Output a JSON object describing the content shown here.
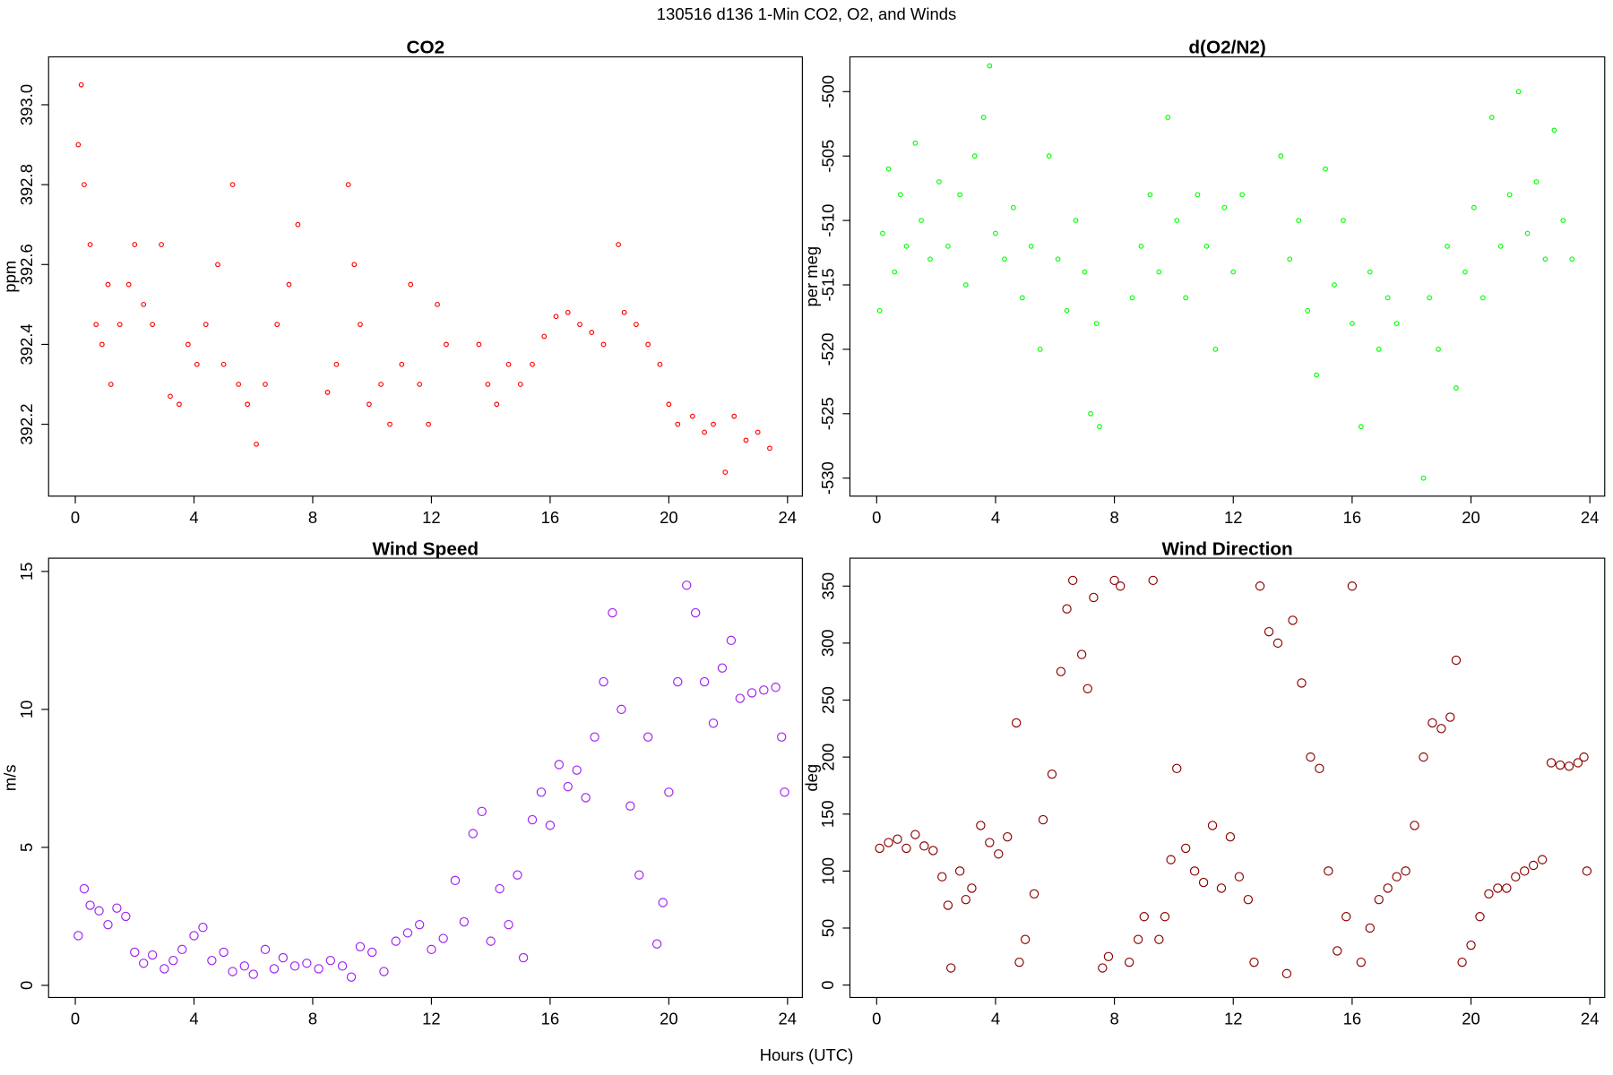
{
  "title": "130516   d136   1-Min CO2, O2, and Winds",
  "xlabel": "Hours (UTC)",
  "chart_data": [
    {
      "type": "scatter",
      "title": "CO2",
      "ylabel": "ppm",
      "color": "#ff0000",
      "xlim": [
        -0.9,
        24.5
      ],
      "xticks": [
        0,
        4,
        8,
        12,
        16,
        20,
        24
      ],
      "ylim": [
        392.02,
        393.12
      ],
      "yticks": [
        392.2,
        392.4,
        392.6,
        392.8,
        {
          "value": 393,
          "label": "393.0"
        }
      ],
      "x": [
        0.1,
        0.2,
        0.3,
        0.5,
        0.7,
        0.9,
        1.1,
        1.2,
        1.5,
        1.8,
        2.0,
        2.3,
        2.6,
        2.9,
        3.2,
        3.5,
        3.8,
        4.1,
        4.4,
        4.8,
        5.0,
        5.3,
        5.5,
        5.8,
        6.1,
        6.4,
        6.8,
        7.2,
        7.5,
        8.5,
        8.8,
        9.2,
        9.4,
        9.6,
        9.9,
        10.3,
        10.6,
        11.0,
        11.3,
        11.6,
        11.9,
        12.2,
        12.5,
        13.6,
        13.9,
        14.2,
        14.6,
        15.0,
        15.4,
        15.8,
        16.2,
        16.6,
        17.0,
        17.4,
        17.8,
        18.3,
        18.5,
        18.9,
        19.3,
        19.7,
        20.0,
        20.3,
        20.8,
        21.2,
        21.5,
        21.9,
        22.2,
        22.6,
        23.0,
        23.4
      ],
      "values": [
        392.9,
        393.05,
        392.8,
        392.65,
        392.45,
        392.4,
        392.55,
        392.3,
        392.45,
        392.55,
        392.65,
        392.5,
        392.45,
        392.65,
        392.27,
        392.25,
        392.4,
        392.35,
        392.45,
        392.6,
        392.35,
        392.8,
        392.3,
        392.25,
        392.15,
        392.3,
        392.45,
        392.55,
        392.7,
        392.28,
        392.35,
        392.8,
        392.6,
        392.45,
        392.25,
        392.3,
        392.2,
        392.35,
        392.55,
        392.3,
        392.2,
        392.5,
        392.4,
        392.4,
        392.3,
        392.25,
        392.35,
        392.3,
        392.35,
        392.42,
        392.47,
        392.48,
        392.45,
        392.43,
        392.4,
        392.65,
        392.48,
        392.45,
        392.4,
        392.35,
        392.25,
        392.2,
        392.22,
        392.18,
        392.2,
        392.08,
        392.22,
        392.16,
        392.18,
        392.14
      ]
    },
    {
      "type": "scatter",
      "title": "d(O2/N2)",
      "ylabel": "per meg",
      "color": "#00ff00",
      "xlim": [
        -0.9,
        24.5
      ],
      "xticks": [
        0,
        4,
        8,
        12,
        16,
        20,
        24
      ],
      "ylim": [
        -531.4,
        -497.3
      ],
      "yticks": [
        -530,
        -525,
        -520,
        -515,
        -510,
        -505,
        -500
      ],
      "x": [
        0.1,
        0.2,
        0.4,
        0.6,
        0.8,
        1.0,
        1.3,
        1.5,
        1.8,
        2.1,
        2.4,
        2.8,
        3.0,
        3.3,
        3.6,
        3.8,
        4.0,
        4.3,
        4.6,
        4.9,
        5.2,
        5.5,
        5.8,
        6.1,
        6.4,
        6.7,
        7.0,
        7.2,
        7.4,
        7.5,
        8.6,
        8.9,
        9.2,
        9.5,
        9.8,
        10.1,
        10.4,
        10.8,
        11.1,
        11.4,
        11.7,
        12.0,
        12.3,
        13.6,
        13.9,
        14.2,
        14.5,
        14.8,
        15.1,
        15.4,
        15.7,
        16.0,
        16.3,
        16.6,
        16.9,
        17.2,
        17.5,
        18.4,
        18.6,
        18.9,
        19.2,
        19.5,
        19.8,
        20.1,
        20.4,
        20.7,
        21.0,
        21.3,
        21.6,
        21.9,
        22.2,
        22.5,
        22.8,
        23.1,
        23.4
      ],
      "values": [
        -517,
        -511,
        -506,
        -514,
        -508,
        -512,
        -504,
        -510,
        -513,
        -507,
        -512,
        -508,
        -515,
        -505,
        -502,
        -498,
        -511,
        -513,
        -509,
        -516,
        -512,
        -520,
        -505,
        -513,
        -517,
        -510,
        -514,
        -525,
        -518,
        -526,
        -516,
        -512,
        -508,
        -514,
        -502,
        -510,
        -516,
        -508,
        -512,
        -520,
        -509,
        -514,
        -508,
        -505,
        -513,
        -510,
        -517,
        -522,
        -506,
        -515,
        -510,
        -518,
        -526,
        -514,
        -520,
        -516,
        -518,
        -530,
        -516,
        -520,
        -512,
        -523,
        -514,
        -509,
        -516,
        -502,
        -512,
        -508,
        -500,
        -511,
        -507,
        -513,
        -503,
        -510,
        -513
      ]
    },
    {
      "type": "scatter",
      "title": "Wind Speed",
      "ylabel": "m/s",
      "color": "#a020f0",
      "xlim": [
        -0.9,
        24.5
      ],
      "xticks": [
        0,
        4,
        8,
        12,
        16,
        20,
        24
      ],
      "ylim": [
        -0.44,
        15.48
      ],
      "yticks": [
        0,
        5,
        10,
        15
      ],
      "x": [
        0.1,
        0.3,
        0.5,
        0.8,
        1.1,
        1.4,
        1.7,
        2.0,
        2.3,
        2.6,
        3.0,
        3.3,
        3.6,
        4.0,
        4.3,
        4.6,
        5.0,
        5.3,
        5.7,
        6.0,
        6.4,
        6.7,
        7.0,
        7.4,
        7.8,
        8.2,
        8.6,
        9.0,
        9.3,
        9.6,
        10.0,
        10.4,
        10.8,
        11.2,
        11.6,
        12.0,
        12.4,
        12.8,
        13.1,
        13.4,
        13.7,
        14.0,
        14.3,
        14.6,
        14.9,
        15.1,
        15.4,
        15.7,
        16.0,
        16.3,
        16.6,
        16.9,
        17.2,
        17.5,
        17.8,
        18.1,
        18.4,
        18.7,
        19.0,
        19.3,
        19.6,
        19.8,
        20.0,
        20.3,
        20.6,
        20.9,
        21.2,
        21.5,
        21.8,
        22.1,
        22.4,
        22.8,
        23.2,
        23.6,
        23.8,
        23.9
      ],
      "values": [
        1.8,
        3.5,
        2.9,
        2.7,
        2.2,
        2.8,
        2.5,
        1.2,
        0.8,
        1.1,
        0.6,
        0.9,
        1.3,
        1.8,
        2.1,
        0.9,
        1.2,
        0.5,
        0.7,
        0.4,
        1.3,
        0.6,
        1.0,
        0.7,
        0.8,
        0.6,
        0.9,
        0.7,
        0.3,
        1.4,
        1.2,
        0.5,
        1.6,
        1.9,
        2.2,
        1.3,
        1.7,
        3.8,
        2.3,
        5.5,
        6.3,
        1.6,
        3.5,
        2.2,
        4.0,
        1.0,
        6.0,
        7.0,
        5.8,
        8.0,
        7.2,
        7.8,
        6.8,
        9.0,
        11.0,
        13.5,
        10.0,
        6.5,
        4.0,
        9.0,
        1.5,
        3.0,
        7.0,
        11.0,
        14.5,
        13.5,
        11.0,
        9.5,
        11.5,
        12.5,
        10.4,
        10.6,
        10.7,
        10.8,
        9.0,
        7.0
      ]
    },
    {
      "type": "scatter",
      "title": "Wind Direction",
      "ylabel": "deg",
      "color": "#8b0000",
      "xlim": [
        -0.9,
        24.5
      ],
      "xticks": [
        0,
        4,
        8,
        12,
        16,
        20,
        24
      ],
      "ylim": [
        -10.9,
        374.5
      ],
      "yticks": [
        0,
        50,
        100,
        150,
        200,
        250,
        300,
        350
      ],
      "x": [
        0.1,
        0.4,
        0.7,
        1.0,
        1.3,
        1.6,
        1.9,
        2.2,
        2.4,
        2.5,
        2.8,
        3.0,
        3.2,
        3.5,
        3.8,
        4.1,
        4.4,
        4.7,
        4.8,
        5.0,
        5.3,
        5.6,
        5.9,
        6.2,
        6.4,
        6.6,
        6.9,
        7.1,
        7.3,
        7.6,
        7.8,
        8.0,
        8.2,
        8.5,
        8.8,
        9.0,
        9.3,
        9.5,
        9.7,
        9.9,
        10.1,
        10.4,
        10.7,
        11.0,
        11.3,
        11.6,
        11.9,
        12.2,
        12.5,
        12.7,
        12.9,
        13.2,
        13.5,
        13.8,
        14.0,
        14.3,
        14.6,
        14.9,
        15.2,
        15.5,
        15.8,
        16.0,
        16.3,
        16.6,
        16.9,
        17.2,
        17.5,
        17.8,
        18.1,
        18.4,
        18.7,
        19.0,
        19.3,
        19.5,
        19.7,
        20.0,
        20.3,
        20.6,
        20.9,
        21.2,
        21.5,
        21.8,
        22.1,
        22.4,
        22.7,
        23.0,
        23.3,
        23.6,
        23.8,
        23.9
      ],
      "values": [
        120,
        125,
        128,
        120,
        132,
        122,
        118,
        95,
        70,
        15,
        100,
        75,
        85,
        140,
        125,
        115,
        130,
        230,
        20,
        40,
        80,
        145,
        185,
        275,
        330,
        355,
        290,
        260,
        340,
        15,
        25,
        355,
        350,
        20,
        40,
        60,
        355,
        40,
        60,
        110,
        190,
        120,
        100,
        90,
        140,
        85,
        130,
        95,
        75,
        20,
        350,
        310,
        300,
        10,
        320,
        265,
        200,
        190,
        100,
        30,
        60,
        350,
        20,
        50,
        75,
        85,
        95,
        100,
        140,
        200,
        230,
        225,
        235,
        285,
        20,
        35,
        60,
        80,
        85,
        85,
        95,
        100,
        105,
        110,
        195,
        193,
        192,
        195,
        200,
        100
      ]
    }
  ]
}
